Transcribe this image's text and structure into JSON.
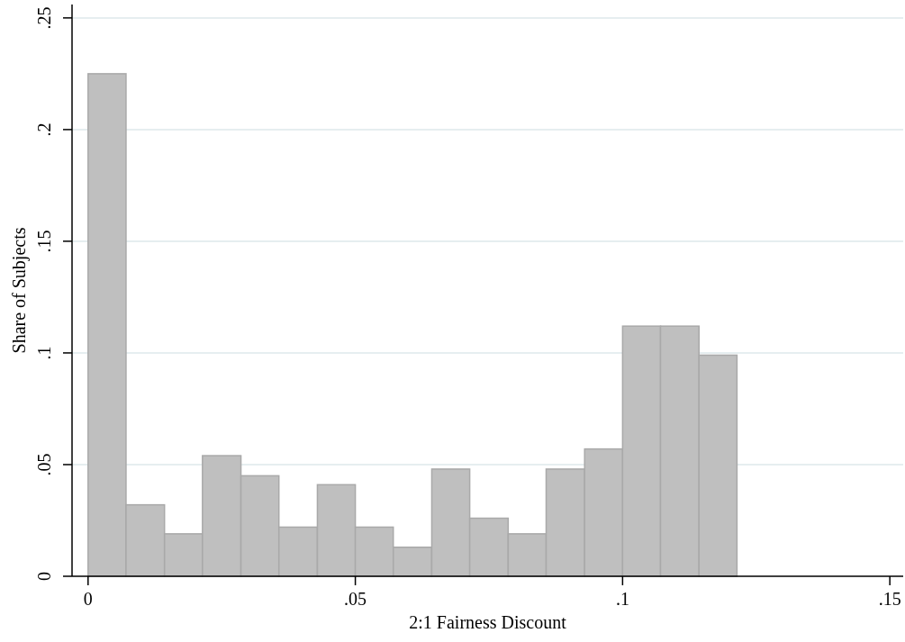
{
  "chart_data": {
    "type": "histogram",
    "xlabel": "2:1 Fairness Discount",
    "ylabel": "Share of Subjects",
    "bins": [
      0,
      0.0071,
      0.0143,
      0.0214,
      0.0286,
      0.0357,
      0.0429,
      0.05,
      0.0571,
      0.0643,
      0.0714,
      0.0786,
      0.0857,
      0.0929,
      0.1,
      0.1071,
      0.1143,
      0.1214
    ],
    "values": [
      0.225,
      0.032,
      0.019,
      0.054,
      0.045,
      0.022,
      0.041,
      0.022,
      0.013,
      0.048,
      0.026,
      0.019,
      0.048,
      0.057,
      0.112,
      0.112,
      0.099
    ],
    "color": "#bfbfbf",
    "xlim": [
      -0.003,
      0.1525
    ],
    "ylim": [
      0,
      0.256
    ],
    "xticks": [
      {
        "value": 0,
        "label": "0"
      },
      {
        "value": 0.05,
        "label": ".05"
      },
      {
        "value": 0.1,
        "label": ".1"
      },
      {
        "value": 0.15,
        "label": ".15"
      }
    ],
    "yticks": [
      {
        "value": 0,
        "label": "0"
      },
      {
        "value": 0.05,
        "label": ".05"
      },
      {
        "value": 0.1,
        "label": ".1"
      },
      {
        "value": 0.15,
        "label": ".15"
      },
      {
        "value": 0.2,
        "label": ".2"
      },
      {
        "value": 0.25,
        "label": ".25"
      }
    ],
    "grid": "y"
  }
}
